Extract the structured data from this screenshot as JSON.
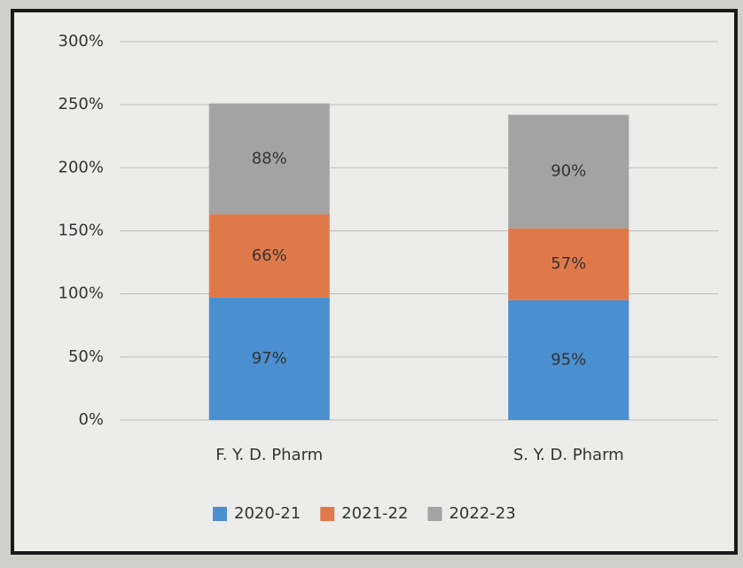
{
  "chart_data": {
    "type": "stacked_bar",
    "categories": [
      "F. Y. D. Pharm",
      "S. Y. D. Pharm"
    ],
    "series": [
      {
        "name": "2020-21",
        "color": "#4a8fcf",
        "values": [
          97,
          95
        ],
        "value_labels": [
          "97%",
          "95%"
        ]
      },
      {
        "name": "2021-22",
        "color": "#e0794a",
        "values": [
          66,
          57
        ],
        "value_labels": [
          "66%",
          "57%"
        ]
      },
      {
        "name": "2022-23",
        "color": "#a3a3a3",
        "values": [
          88,
          90
        ],
        "value_labels": [
          "88%",
          "90%"
        ]
      }
    ],
    "ylim": [
      0,
      300
    ],
    "yticks": [
      {
        "value": 0,
        "label": "0%"
      },
      {
        "value": 50,
        "label": "50%"
      },
      {
        "value": 100,
        "label": "100%"
      },
      {
        "value": 150,
        "label": "150%"
      },
      {
        "value": 200,
        "label": "200%"
      },
      {
        "value": 250,
        "label": "250%"
      },
      {
        "value": 300,
        "label": "300%"
      }
    ],
    "grid": true,
    "legend": "bottom"
  }
}
